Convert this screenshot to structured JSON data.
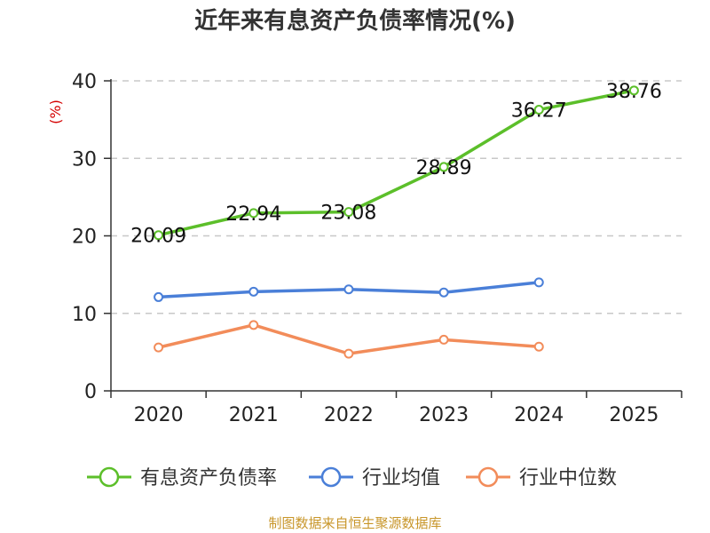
{
  "chart_data": {
    "type": "line",
    "title": "近年来有息资产负债率情况(%)",
    "ylabel": "(%)",
    "xlabel": "",
    "categories": [
      "2020",
      "2021",
      "2022",
      "2023",
      "2024",
      "2025"
    ],
    "ylim": [
      0,
      40
    ],
    "yticks": [
      0,
      10,
      20,
      30,
      40
    ],
    "grid": true,
    "legend_position": "bottom",
    "series": [
      {
        "name": "有息资产负债率",
        "color": "#5cbf2a",
        "values": [
          20.09,
          22.94,
          23.08,
          28.89,
          36.27,
          38.76
        ],
        "labels": [
          "20.09",
          "22.94",
          "23.08",
          "28.89",
          "36.27",
          "38.76"
        ]
      },
      {
        "name": "行业均值",
        "color": "#4a7fd8",
        "values": [
          12.1,
          12.8,
          13.1,
          12.7,
          14.0,
          null
        ]
      },
      {
        "name": "行业中位数",
        "color": "#f28c5a",
        "values": [
          5.6,
          8.5,
          4.8,
          6.6,
          5.7,
          null
        ]
      }
    ],
    "source": "制图数据来自恒生聚源数据库"
  }
}
